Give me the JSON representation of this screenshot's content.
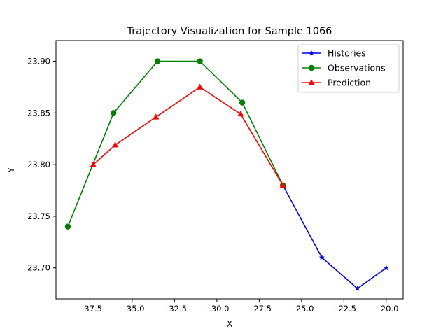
{
  "chart_data": {
    "type": "line",
    "title": "Trajectory Visualization for Sample 1066",
    "xlabel": "X",
    "ylabel": "Y",
    "xlim": [
      -39.5,
      -19.0
    ],
    "ylim": [
      23.67,
      23.92
    ],
    "xticks": [
      -37.5,
      -35.0,
      -32.5,
      -30.0,
      -27.5,
      -25.0,
      -22.5,
      -20.0
    ],
    "xtick_labels": [
      "−37.5",
      "−35.0",
      "−32.5",
      "−30.0",
      "−27.5",
      "−25.0",
      "−22.5",
      "−20.0"
    ],
    "yticks": [
      23.7,
      23.75,
      23.8,
      23.85,
      23.9
    ],
    "ytick_labels": [
      "23.70",
      "23.75",
      "23.80",
      "23.85",
      "23.90"
    ],
    "grid": false,
    "legend_position": "top-right",
    "series": [
      {
        "name": "Histories",
        "color": "#0000ff",
        "marker": "star",
        "x": [
          -26.1,
          -23.8,
          -21.7,
          -20.0
        ],
        "y": [
          23.78,
          23.71,
          23.68,
          23.7
        ]
      },
      {
        "name": "Observations",
        "color": "#008000",
        "marker": "circle",
        "x": [
          -38.8,
          -36.1,
          -33.5,
          -31.0,
          -28.5,
          -26.1
        ],
        "y": [
          23.74,
          23.85,
          23.9,
          23.9,
          23.86,
          23.78
        ]
      },
      {
        "name": "Prediction",
        "color": "#ff0000",
        "marker": "triangle",
        "x": [
          -37.3,
          -36.0,
          -33.6,
          -31.0,
          -28.6,
          -26.1
        ],
        "y": [
          23.8,
          23.819,
          23.846,
          23.875,
          23.849,
          23.78
        ]
      }
    ]
  }
}
